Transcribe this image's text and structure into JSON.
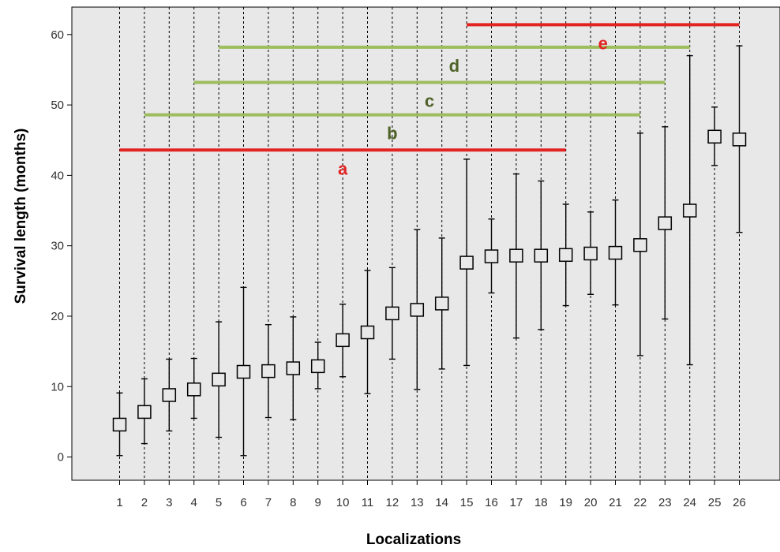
{
  "chart_data": {
    "type": "scatter",
    "subtype": "error-bar",
    "title": "",
    "xlabel": "Localizations",
    "ylabel": "Survival length (months)",
    "ylim": [
      -3.3,
      63.9
    ],
    "yticks": [
      0,
      10,
      20,
      30,
      40,
      50,
      60
    ],
    "grid": "vertical dashed lines at each category",
    "legend": "none",
    "colors": {
      "plot_background": "#e8e8e8",
      "marker": "#000000",
      "grid": "#000000",
      "red_group": "#e32222",
      "green_group": "#9dbd5e",
      "green_label": "#4f6228"
    },
    "categories": [
      "1",
      "2",
      "3",
      "4",
      "5",
      "6",
      "7",
      "8",
      "9",
      "10",
      "11",
      "12",
      "13",
      "14",
      "15",
      "16",
      "17",
      "18",
      "19",
      "20",
      "21",
      "22",
      "23",
      "24",
      "25",
      "26"
    ],
    "points": [
      {
        "x": "1",
        "y": 4.6,
        "low": 0.2,
        "high": 9.1
      },
      {
        "x": "2",
        "y": 6.4,
        "low": 1.9,
        "high": 11.1
      },
      {
        "x": "3",
        "y": 8.8,
        "low": 3.7,
        "high": 13.9
      },
      {
        "x": "4",
        "y": 9.6,
        "low": 5.5,
        "high": 14.0
      },
      {
        "x": "5",
        "y": 11.0,
        "low": 2.8,
        "high": 19.2
      },
      {
        "x": "6",
        "y": 12.1,
        "low": 0.2,
        "high": 24.1
      },
      {
        "x": "7",
        "y": 12.2,
        "low": 5.6,
        "high": 18.8
      },
      {
        "x": "8",
        "y": 12.6,
        "low": 5.3,
        "high": 19.9
      },
      {
        "x": "9",
        "y": 12.9,
        "low": 9.7,
        "high": 16.3
      },
      {
        "x": "10",
        "y": 16.6,
        "low": 11.4,
        "high": 21.7
      },
      {
        "x": "11",
        "y": 17.7,
        "low": 9.0,
        "high": 26.5
      },
      {
        "x": "12",
        "y": 20.4,
        "low": 13.9,
        "high": 26.9
      },
      {
        "x": "13",
        "y": 20.9,
        "low": 9.6,
        "high": 32.3
      },
      {
        "x": "14",
        "y": 21.8,
        "low": 12.5,
        "high": 31.1
      },
      {
        "x": "15",
        "y": 27.6,
        "low": 13.0,
        "high": 42.3
      },
      {
        "x": "16",
        "y": 28.5,
        "low": 23.3,
        "high": 33.8
      },
      {
        "x": "17",
        "y": 28.6,
        "low": 16.9,
        "high": 40.2
      },
      {
        "x": "18",
        "y": 28.6,
        "low": 18.1,
        "high": 39.2
      },
      {
        "x": "19",
        "y": 28.7,
        "low": 21.5,
        "high": 35.9
      },
      {
        "x": "20",
        "y": 28.9,
        "low": 23.1,
        "high": 34.8
      },
      {
        "x": "21",
        "y": 29.0,
        "low": 21.6,
        "high": 36.5
      },
      {
        "x": "22",
        "y": 30.1,
        "low": 14.4,
        "high": 46.0
      },
      {
        "x": "23",
        "y": 33.2,
        "low": 19.6,
        "high": 46.9
      },
      {
        "x": "24",
        "y": 35.0,
        "low": 13.1,
        "high": 57.0
      },
      {
        "x": "25",
        "y": 45.5,
        "low": 41.4,
        "high": 49.7
      },
      {
        "x": "26",
        "y": 45.1,
        "low": 31.9,
        "high": 58.4
      }
    ],
    "groups": [
      {
        "label": "a",
        "from": "1",
        "to": "19",
        "y": 43.6,
        "color": "red"
      },
      {
        "label": "b",
        "from": "2",
        "to": "22",
        "y": 48.6,
        "color": "green"
      },
      {
        "label": "c",
        "from": "4",
        "to": "23",
        "y": 53.2,
        "color": "green"
      },
      {
        "label": "d",
        "from": "5",
        "to": "24",
        "y": 58.2,
        "color": "green"
      },
      {
        "label": "e",
        "from": "15",
        "to": "26",
        "y": 61.4,
        "color": "red"
      }
    ]
  }
}
